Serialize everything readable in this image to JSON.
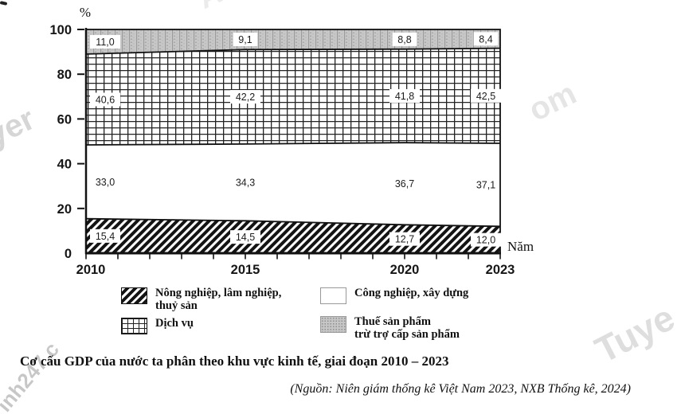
{
  "title": "Cơ cấu GDP của nước ta phân theo khu vực kinh tế, giai đoạn 2010 – 2023",
  "source": "(Nguồn: Niên giám thống kê Việt Nam 2023, NXB Thống kê, 2024)",
  "watermarks": [
    "yer",
    "om",
    "Tuye",
    "inh247.c",
    "A"
  ],
  "chart_data": {
    "type": "area",
    "stacked": true,
    "percent_stacked": true,
    "title": "Cơ cấu GDP của nước ta phân theo khu vực kinh tế, giai đoạn 2010 – 2023",
    "x": [
      2010,
      2015,
      2020,
      2023
    ],
    "x_axis_label": "Năm",
    "y_axis_unit": "%",
    "ylim": [
      0,
      100
    ],
    "yticks": [
      0,
      20,
      40,
      60,
      80,
      100
    ],
    "x_minor_ticks_every_year": true,
    "decimal_separator": ",",
    "grid": false,
    "legend_position": "bottom",
    "series": [
      {
        "key": "agriculture-forestry-fishery",
        "name": "Nông nghiệp, lâm nghiệp, thuỷ sản",
        "pattern": "diagonal-hatch",
        "values": [
          15.4,
          14.5,
          12.7,
          12.0
        ]
      },
      {
        "key": "industry-construction",
        "name": "Công nghiệp, xây dựng",
        "pattern": "plain-white",
        "values": [
          33.0,
          34.3,
          36.7,
          37.1
        ]
      },
      {
        "key": "services",
        "name": "Dịch vụ",
        "pattern": "crosshatch-grid",
        "values": [
          40.6,
          42.2,
          41.8,
          42.5
        ]
      },
      {
        "key": "product-taxes",
        "name": "Thuế sản phẩm trừ trợ cấp sản phẩm",
        "pattern": "dotted-gray",
        "values": [
          11.0,
          9.1,
          8.8,
          8.4
        ]
      }
    ],
    "legend": [
      {
        "key": "agriculture-forestry-fishery",
        "pattern": "diagonal-hatch",
        "lines": [
          "Nông nghiệp, lâm nghiệp,",
          "thuỷ sản"
        ]
      },
      {
        "key": "industry-construction",
        "pattern": "plain-white",
        "lines": [
          "Công nghiệp, xây dựng"
        ]
      },
      {
        "key": "services",
        "pattern": "crosshatch-grid",
        "lines": [
          "Dịch vụ"
        ]
      },
      {
        "key": "product-taxes",
        "pattern": "dotted-gray",
        "lines": [
          "Thuế sản phẩm",
          "trừ trợ cấp sản phẩm"
        ]
      }
    ]
  }
}
